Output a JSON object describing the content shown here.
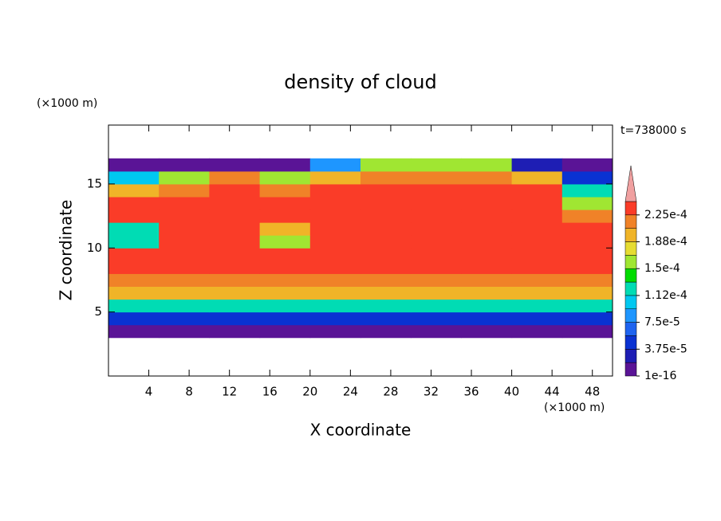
{
  "chart_data": {
    "type": "contour",
    "title": "density of cloud",
    "annotation": "t=738000 s",
    "x_label": "X coordinate",
    "y_label": "Z coordinate",
    "x_unit": "(×1000 m)",
    "y_unit": "(×1000 m)",
    "xlim": [
      0,
      50
    ],
    "ylim": [
      0,
      19.6
    ],
    "xticks": [
      4,
      8,
      12,
      16,
      20,
      24,
      28,
      32,
      36,
      40,
      44,
      48
    ],
    "yticks": [
      5,
      10,
      15
    ],
    "x_edges": [
      0,
      5,
      10,
      15,
      20,
      25,
      30,
      35,
      40,
      45,
      50
    ],
    "y_edges": [
      3,
      4,
      5,
      6,
      7,
      8,
      9,
      10,
      11,
      12,
      13,
      14,
      15,
      16,
      17
    ],
    "z": [
      [
        5e-06,
        5e-06,
        5e-06,
        5e-06,
        5e-06,
        5e-06,
        5e-06,
        5e-06,
        5e-06,
        5e-06
      ],
      [
        5e-05,
        5e-05,
        5e-05,
        4e-05,
        5e-05,
        5e-05,
        5e-05,
        5e-05,
        5e-05,
        5e-05
      ],
      [
        0.00013,
        0.00013,
        0.00013,
        0.00013,
        0.00013,
        0.00013,
        0.00013,
        0.00013,
        0.00013,
        0.00013
      ],
      [
        0.00019,
        0.00019,
        0.00019,
        0.00019,
        0.00019,
        0.00019,
        0.00019,
        0.00019,
        0.00019,
        0.00019
      ],
      [
        0.00021,
        0.00021,
        0.00021,
        0.00021,
        0.00021,
        0.00021,
        0.00021,
        0.00021,
        0.00021,
        0.00021
      ],
      [
        0.00023,
        0.00023,
        0.00023,
        0.00023,
        0.00023,
        0.00023,
        0.00023,
        0.00023,
        0.00023,
        0.00023
      ],
      [
        0.00024,
        0.00024,
        0.00024,
        0.00024,
        0.00024,
        0.00024,
        0.00024,
        0.00024,
        0.00024,
        0.00024
      ],
      [
        0.00012,
        0.00024,
        0.00024,
        0.00016,
        0.00024,
        0.00024,
        0.00024,
        0.00024,
        0.00024,
        0.00024
      ],
      [
        0.00013,
        0.00024,
        0.00024,
        0.0002,
        0.00024,
        0.00024,
        0.00024,
        0.00024,
        0.00024,
        0.00023
      ],
      [
        0.00024,
        0.00024,
        0.00024,
        0.00024,
        0.00024,
        0.00024,
        0.00024,
        0.00024,
        0.00024,
        0.00022
      ],
      [
        0.00023,
        0.00023,
        0.00023,
        0.00023,
        0.00023,
        0.00023,
        0.00023,
        0.00023,
        0.00023,
        0.00015
      ],
      [
        0.00019,
        0.00022,
        0.00023,
        0.00022,
        0.00023,
        0.00023,
        0.00023,
        0.00023,
        0.00023,
        0.00012
      ],
      [
        0.0001,
        0.00015,
        0.00021,
        0.00016,
        0.00019,
        0.00022,
        0.00022,
        0.00022,
        0.0002,
        5e-05
      ],
      [
        5e-06,
        1e-05,
        1e-05,
        1e-05,
        8e-05,
        0.00015,
        0.00015,
        0.00015,
        3e-05,
        5e-06
      ]
    ],
    "levels": [
      1e-16,
      1.875e-05,
      3.75e-05,
      5.625e-05,
      7.5e-05,
      9.375e-05,
      0.0001125,
      0.00013125,
      0.00015,
      0.00016875,
      0.0001875,
      0.00020625,
      0.000225
    ],
    "colors": [
      "#5a1496",
      "#1e1eb4",
      "#0a32d2",
      "#1e64f0",
      "#1e96ff",
      "#00c8f0",
      "#00dcb4",
      "#00dc00",
      "#a0e632",
      "#e6dc32",
      "#f0b428",
      "#f08228",
      "#fa3c28"
    ],
    "over_color": "#f0a0a0",
    "colorbar_ticks": [
      {
        "value": 1e-16,
        "label": "1e-16"
      },
      {
        "value": 3.75e-05,
        "label": "3.75e-5"
      },
      {
        "value": 7.5e-05,
        "label": "7.5e-5"
      },
      {
        "value": 0.0001125,
        "label": "1.12e-4"
      },
      {
        "value": 0.00015,
        "label": "1.5e-4"
      },
      {
        "value": 0.0001875,
        "label": "1.88e-4"
      },
      {
        "value": 0.000225,
        "label": "2.25e-4"
      }
    ]
  }
}
